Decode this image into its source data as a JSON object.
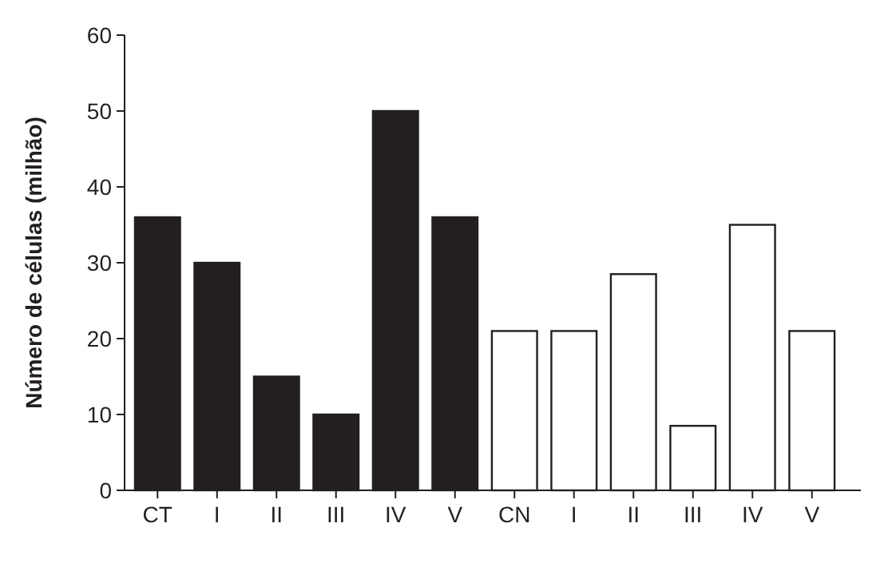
{
  "chart_data": {
    "type": "bar",
    "ylabel": "Número de células (milhão)",
    "categories": [
      "CT",
      "I",
      "II",
      "III",
      "IV",
      "V",
      "CN",
      "I",
      "II",
      "III",
      "IV",
      "V"
    ],
    "values": [
      36,
      30,
      15,
      10,
      50,
      36,
      21,
      21,
      28.5,
      8.5,
      35,
      21
    ],
    "colors": [
      "#231f20",
      "#231f20",
      "#231f20",
      "#231f20",
      "#231f20",
      "#231f20",
      "#ffffff",
      "#ffffff",
      "#ffffff",
      "#ffffff",
      "#ffffff",
      "#ffffff"
    ],
    "ylim": [
      0,
      60
    ],
    "yticks": [
      0,
      10,
      20,
      30,
      40,
      50,
      60
    ],
    "grid": false
  }
}
